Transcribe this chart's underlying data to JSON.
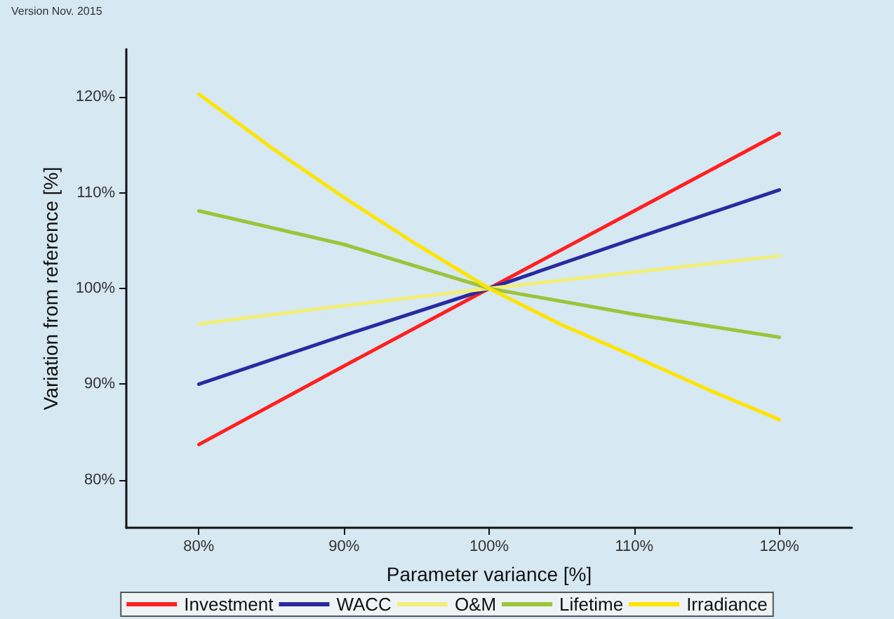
{
  "chart_data": {
    "type": "line",
    "xlabel": "Parameter variance [%]",
    "ylabel": "Variation from reference [%]",
    "annotations": [
      "Version Nov. 2015"
    ],
    "x": [
      80,
      90,
      100,
      110,
      120
    ],
    "xlim": [
      75,
      125
    ],
    "ylim": [
      75,
      125
    ],
    "xticks": [
      {
        "value": 80,
        "label": "80%"
      },
      {
        "value": 90,
        "label": "90%"
      },
      {
        "value": 100,
        "label": "100%"
      },
      {
        "value": 110,
        "label": "110%"
      },
      {
        "value": 120,
        "label": "120%"
      }
    ],
    "yticks": [
      {
        "value": 80,
        "label": "80%"
      },
      {
        "value": 90,
        "label": "90%"
      },
      {
        "value": 100,
        "label": "100%"
      },
      {
        "value": 110,
        "label": "110%"
      },
      {
        "value": 120,
        "label": "120%"
      }
    ],
    "series": [
      {
        "name": "Investment",
        "color": "#ff2020",
        "values": [
          83.7,
          91.9,
          100,
          108.1,
          116.2
        ]
      },
      {
        "name": "WACC",
        "color": "#2a2aa0",
        "values": [
          90.0,
          95.1,
          100,
          105.2,
          110.3
        ]
      },
      {
        "name": "O&M",
        "color": "#f2ee78",
        "values": [
          96.3,
          98.2,
          100,
          101.7,
          103.4
        ]
      },
      {
        "name": "Lifetime",
        "color": "#9cc43a",
        "values": [
          108.1,
          104.6,
          100,
          97.3,
          94.9
        ]
      },
      {
        "name": "Irradiance",
        "color": "#ffe400",
        "x": [
          80,
          85,
          90,
          95,
          100,
          105,
          110,
          115,
          120
        ],
        "values": [
          120.3,
          114.7,
          109.5,
          104.6,
          100,
          96.2,
          92.9,
          89.5,
          86.3
        ]
      }
    ],
    "grid": false,
    "legend": "bottom",
    "marker": "none",
    "line_style": "solid"
  }
}
